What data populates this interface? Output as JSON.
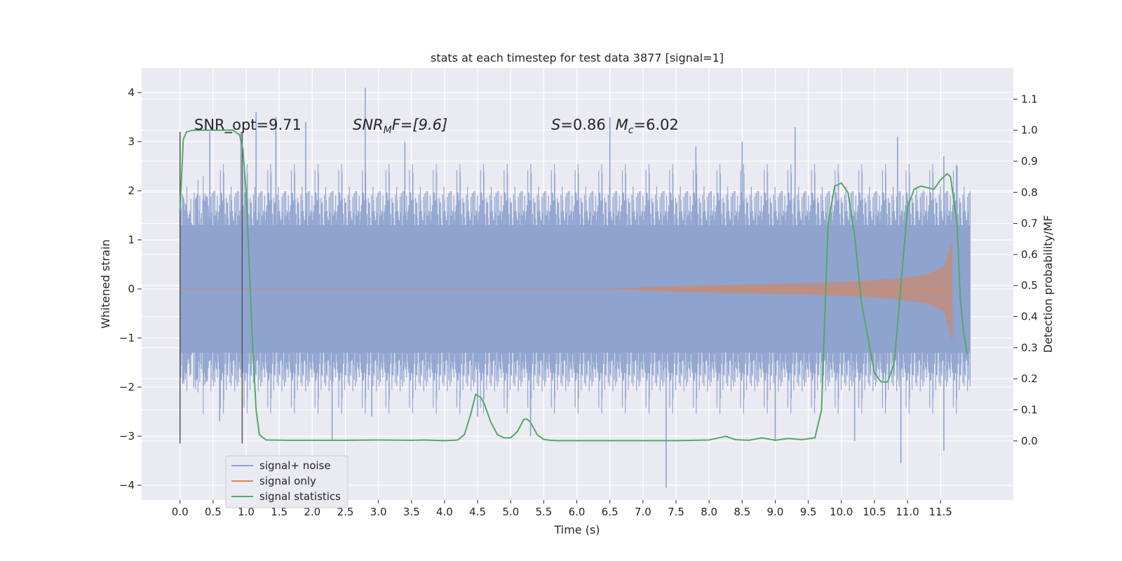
{
  "chart_data": {
    "type": "line",
    "title": "stats at each timestep for test data 3877 [signal=1]",
    "xlabel": "Time (s)",
    "ylabel": "Whitened strain",
    "y2label": "Detection probability/MF",
    "xlim": [
      -0.58,
      12.6
    ],
    "ylim": [
      -4.3,
      4.5
    ],
    "y2lim": [
      -0.19,
      1.2
    ],
    "x_ticks": [
      0.0,
      0.5,
      1.0,
      1.5,
      2.0,
      2.5,
      3.0,
      3.5,
      4.0,
      4.5,
      5.0,
      5.5,
      6.0,
      6.5,
      7.0,
      7.5,
      8.0,
      8.5,
      9.0,
      9.5,
      10.0,
      10.5,
      11.0,
      11.5
    ],
    "x_tick_labels": [
      "0.0",
      "0.5",
      "1.0",
      "1.5",
      "2.0",
      "2.5",
      "3.0",
      "3.5",
      "4.0",
      "4.5",
      "5.0",
      "5.5",
      "6.0",
      "6.5",
      "7.0",
      "7.5",
      "8.0",
      "8.5",
      "9.0",
      "9.5",
      "10.0",
      "10.5",
      "11.0",
      "11.5"
    ],
    "y_ticks": [
      4,
      3,
      2,
      1,
      0,
      -1,
      -2,
      -3,
      -4
    ],
    "y_tick_labels": [
      "4",
      "3",
      "2",
      "1",
      "0",
      "−1",
      "−2",
      "−3",
      "−4"
    ],
    "y2_ticks": [
      1.1,
      1.0,
      0.9,
      0.8,
      0.7,
      0.6,
      0.5,
      0.4,
      0.3,
      0.2,
      0.1,
      0.0
    ],
    "y2_tick_labels": [
      "1.1",
      "1.0",
      "0.9",
      "0.8",
      "0.7",
      "0.6",
      "0.5",
      "0.4",
      "0.3",
      "0.2",
      "0.1",
      "0.0"
    ],
    "grid": true,
    "legend_position": "lower-left",
    "annotations": {
      "snr_opt": "SNR_opt=9.71",
      "snr_mf_main": "SNR",
      "snr_mf_sub": "M",
      "snr_mf_rest": "F=[9.6]",
      "s_var": "S",
      "s_val": "=0.86",
      "mc_var": "M",
      "mc_sub": "c",
      "mc_val": "=6.02"
    },
    "vertical_markers": [
      0.0,
      0.94
    ],
    "marker_range": [
      -3.15,
      3.2
    ],
    "series": [
      {
        "name": "signal+ noise",
        "color": "#8fa3cf",
        "axis": "left",
        "x_range": [
          0.0,
          11.95
        ],
        "band_abs": 1.3,
        "typical_abs": 1.9,
        "spikes": [
          [
            0.45,
            3.2
          ],
          [
            0.6,
            -2.7
          ],
          [
            0.92,
            3.2
          ],
          [
            1.15,
            3.6
          ],
          [
            1.45,
            3.5
          ],
          [
            1.9,
            3.4
          ],
          [
            2.3,
            -3.1
          ],
          [
            2.8,
            4.1
          ],
          [
            2.9,
            -2.6
          ],
          [
            3.4,
            3.0
          ],
          [
            4.5,
            -2.6
          ],
          [
            5.3,
            -3.0
          ],
          [
            6.5,
            3.5
          ],
          [
            7.35,
            -4.05
          ],
          [
            7.8,
            2.9
          ],
          [
            8.5,
            3.0
          ],
          [
            9.0,
            -3.1
          ],
          [
            9.3,
            3.3
          ],
          [
            10.2,
            -3.1
          ],
          [
            10.85,
            3.1
          ],
          [
            10.9,
            -3.55
          ],
          [
            11.55,
            2.7
          ],
          [
            11.55,
            -3.3
          ],
          [
            11.75,
            2.5
          ]
        ]
      },
      {
        "name": "signal only",
        "color": "#dd8452",
        "axis": "left",
        "envelope": [
          [
            6.5,
            0.0
          ],
          [
            7.5,
            0.06
          ],
          [
            8.5,
            0.09
          ],
          [
            9.5,
            0.12
          ],
          [
            10.3,
            0.16
          ],
          [
            10.9,
            0.22
          ],
          [
            11.3,
            0.3
          ],
          [
            11.55,
            0.45
          ],
          [
            11.68,
            1.0
          ]
        ],
        "end_drop": -1.1
      },
      {
        "name": "signal statistics",
        "color": "#55a868",
        "axis": "right",
        "x": [
          0.0,
          0.05,
          0.1,
          0.2,
          0.4,
          0.6,
          0.8,
          0.9,
          0.95,
          1.0,
          1.05,
          1.1,
          1.15,
          1.2,
          1.3,
          1.6,
          2.0,
          2.5,
          3.0,
          3.5,
          3.7,
          4.0,
          4.2,
          4.3,
          4.4,
          4.47,
          4.55,
          4.6,
          4.7,
          4.8,
          4.9,
          5.0,
          5.1,
          5.2,
          5.25,
          5.3,
          5.4,
          5.5,
          5.6,
          5.7,
          6.0,
          6.5,
          7.0,
          7.5,
          8.0,
          8.1,
          8.25,
          8.4,
          8.6,
          8.8,
          9.0,
          9.2,
          9.4,
          9.6,
          9.7,
          9.8,
          9.9,
          10.0,
          10.1,
          10.2,
          10.3,
          10.5,
          10.6,
          10.7,
          10.8,
          10.9,
          11.0,
          11.1,
          11.2,
          11.4,
          11.5,
          11.6,
          11.65,
          11.75,
          11.8,
          11.85,
          11.9
        ],
        "values": [
          0.74,
          0.97,
          0.995,
          1.0,
          1.0,
          1.0,
          1.0,
          0.985,
          0.94,
          0.8,
          0.55,
          0.3,
          0.1,
          0.02,
          0.003,
          0.002,
          0.002,
          0.002,
          0.003,
          0.002,
          0.003,
          0.001,
          0.003,
          0.02,
          0.09,
          0.15,
          0.14,
          0.12,
          0.06,
          0.02,
          0.01,
          0.01,
          0.03,
          0.07,
          0.07,
          0.06,
          0.02,
          0.005,
          0.002,
          0.001,
          0.001,
          0.001,
          0.001,
          0.001,
          0.003,
          0.008,
          0.015,
          0.004,
          0.002,
          0.01,
          0.002,
          0.008,
          0.004,
          0.01,
          0.1,
          0.7,
          0.82,
          0.83,
          0.8,
          0.66,
          0.45,
          0.22,
          0.19,
          0.19,
          0.25,
          0.5,
          0.75,
          0.81,
          0.82,
          0.81,
          0.84,
          0.86,
          0.85,
          0.7,
          0.45,
          0.35,
          0.28
        ]
      }
    ]
  }
}
